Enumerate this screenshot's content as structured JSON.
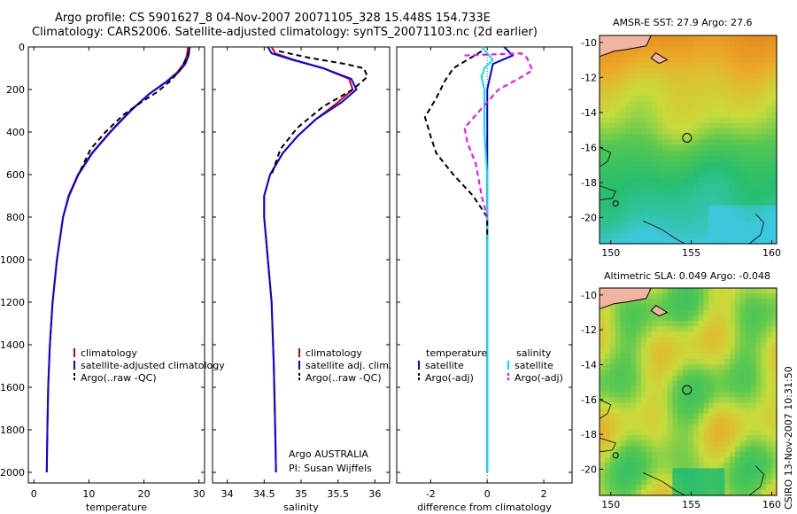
{
  "title": {
    "line1": "Argo profile: CS 5901627_8 04-Nov-2007 20071105_328 15.448S 154.733E",
    "line2": "Climatology: CARS2006. Satellite-adjusted climatology: synTS_20071103.nc (2d earlier)"
  },
  "footer": "CSIRO 13-Nov-2007 10:31:50",
  "colors": {
    "climatology": "#e00000",
    "satellite": "#0000ff",
    "argo": "#000000",
    "sat_sal": "#00e0ff",
    "argo_sal": "#ff00ff"
  },
  "chart_data": [
    {
      "type": "line",
      "panel": "temperature",
      "xlabel": "temperature",
      "xlim": [
        -1,
        31
      ],
      "ylim": [
        0,
        2050
      ],
      "xticks": [
        0,
        10,
        20,
        30
      ],
      "yticks": [
        0,
        200,
        400,
        600,
        800,
        1000,
        1200,
        1400,
        1600,
        1800,
        2000
      ],
      "legend": [
        "climatology",
        "satellite-adjusted climatology",
        "Argo(..raw -QC)"
      ],
      "series": [
        {
          "name": "climatology",
          "color": "#e00000",
          "dash": "",
          "x": [
            28,
            27.8,
            27.2,
            26,
            24.2,
            21,
            17.5,
            13.8,
            10.5,
            8,
            6.3,
            5.3,
            4.2,
            3.4,
            2.9,
            2.6,
            2.45,
            2.35
          ],
          "y": [
            0,
            40,
            80,
            120,
            160,
            220,
            300,
            400,
            500,
            600,
            700,
            800,
            1000,
            1200,
            1400,
            1600,
            1800,
            2000
          ]
        },
        {
          "name": "satellite-adjusted climatology",
          "color": "#0000ff",
          "dash": "",
          "x": [
            28.3,
            28.1,
            27.5,
            26.2,
            24.3,
            21,
            17.6,
            13.9,
            10.6,
            8.1,
            6.4,
            5.3,
            4.2,
            3.4,
            2.9,
            2.6,
            2.45,
            2.35
          ],
          "y": [
            0,
            40,
            80,
            120,
            160,
            220,
            300,
            400,
            500,
            600,
            700,
            800,
            1000,
            1200,
            1400,
            1600,
            1800,
            2000
          ]
        },
        {
          "name": "Argo(..raw -QC)",
          "color": "#000000",
          "dash": "6,4",
          "x": [
            28.2,
            27.6,
            26.5,
            24.8,
            22.5,
            19.5,
            16.2,
            13,
            10.3,
            8.1
          ],
          "y": [
            20,
            60,
            110,
            160,
            210,
            260,
            320,
            400,
            480,
            600
          ]
        }
      ]
    },
    {
      "type": "line",
      "panel": "salinity",
      "xlabel": "salinity",
      "xlim": [
        33.8,
        36.2
      ],
      "ylim": [
        0,
        2050
      ],
      "xticks": [
        34,
        34.5,
        35,
        35.5,
        36
      ],
      "legend": [
        "climatology",
        "satellite adj. clim.",
        "Argo(..raw -QC)"
      ],
      "annotation": [
        "Argo AUSTRALIA",
        "PI: Susan Wijffels"
      ],
      "series": [
        {
          "name": "climatology",
          "color": "#e00000",
          "dash": "",
          "x": [
            34.6,
            34.65,
            34.9,
            35.3,
            35.65,
            35.7,
            35.5,
            35.2,
            34.95,
            34.75,
            34.58,
            34.5,
            34.5,
            34.55,
            34.6,
            34.63,
            34.65,
            34.66
          ],
          "y": [
            0,
            30,
            60,
            100,
            150,
            200,
            260,
            340,
            420,
            500,
            600,
            700,
            800,
            1000,
            1200,
            1500,
            1800,
            2000
          ]
        },
        {
          "name": "satellite adj. clim.",
          "color": "#0000ff",
          "dash": "",
          "x": [
            34.55,
            34.6,
            34.88,
            35.3,
            35.68,
            35.75,
            35.55,
            35.2,
            34.95,
            34.75,
            34.58,
            34.5,
            34.5,
            34.55,
            34.6,
            34.63,
            34.65,
            34.66
          ],
          "y": [
            0,
            30,
            60,
            100,
            150,
            200,
            260,
            340,
            420,
            500,
            600,
            700,
            800,
            1000,
            1200,
            1500,
            1800,
            2000
          ]
        },
        {
          "name": "Argo(..raw -QC)",
          "color": "#000000",
          "dash": "6,4",
          "x": [
            34.7,
            35.1,
            35.6,
            35.85,
            35.9,
            35.7,
            35.3,
            34.95,
            34.72,
            34.6
          ],
          "y": [
            20,
            50,
            80,
            100,
            140,
            200,
            280,
            380,
            480,
            600
          ]
        }
      ]
    },
    {
      "type": "line",
      "panel": "difference",
      "xlabel": "difference from climatology",
      "xlim": [
        -3.2,
        3
      ],
      "ylim": [
        0,
        2050
      ],
      "xticks": [
        -2,
        0,
        2
      ],
      "legend": [
        "temperature",
        "salinity",
        "satellite",
        "satellite",
        "Argo(-adj)",
        "Argo(-adj)"
      ],
      "series": [
        {
          "name": "temperature satellite",
          "color": "#0000ff",
          "dash": "",
          "x": [
            0.6,
            0.9,
            0.2,
            0.1,
            0,
            0,
            0,
            0,
            0
          ],
          "y": [
            0,
            40,
            80,
            140,
            200,
            400,
            800,
            1400,
            2000
          ]
        },
        {
          "name": "salinity satellite",
          "color": "#00e0ff",
          "dash": "",
          "x": [
            -0.2,
            0.2,
            -0.1,
            -0.2,
            -0.1,
            -0.1,
            0,
            0,
            0,
            0
          ],
          "y": [
            0,
            60,
            100,
            140,
            200,
            400,
            600,
            900,
            1400,
            2000
          ]
        },
        {
          "name": "temperature Argo(-adj)",
          "color": "#000000",
          "dash": "6,4",
          "x": [
            -0.2,
            -1.2,
            -1.5,
            -1.8,
            -2.2,
            -2.0,
            -1.8,
            -1.2,
            -0.5,
            0,
            0
          ],
          "y": [
            20,
            100,
            160,
            240,
            330,
            420,
            500,
            600,
            700,
            800,
            900
          ]
        },
        {
          "name": "salinity Argo(-adj)",
          "color": "#ff00ff",
          "dash": "6,4",
          "x": [
            -0.8,
            1.2,
            1.4,
            1.6,
            1.1,
            0.4,
            -0.8,
            -0.7,
            -0.4,
            -0.2,
            0
          ],
          "y": [
            40,
            30,
            50,
            110,
            150,
            200,
            380,
            450,
            550,
            700,
            800
          ]
        }
      ]
    },
    {
      "type": "heatmap",
      "panel": "sst_map",
      "title": "AMSR-E SST: 27.9 Argo: 27.6",
      "xlim": [
        149.3,
        160.3
      ],
      "ylim": [
        -21.5,
        -9.6
      ],
      "xticks": [
        150,
        155,
        160
      ],
      "yticks": [
        -10,
        -12,
        -14,
        -16,
        -18,
        -20
      ],
      "marker": [
        154.733,
        -15.448
      ]
    },
    {
      "type": "heatmap",
      "panel": "sla_map",
      "title": "Altimetric SLA: 0.049 Argo: -0.048",
      "xlim": [
        149.3,
        160.3
      ],
      "ylim": [
        -21.5,
        -9.6
      ],
      "xticks": [
        150,
        155,
        160
      ],
      "yticks": [
        -10,
        -12,
        -14,
        -16,
        -18,
        -20
      ],
      "marker": [
        154.733,
        -15.448
      ]
    }
  ]
}
